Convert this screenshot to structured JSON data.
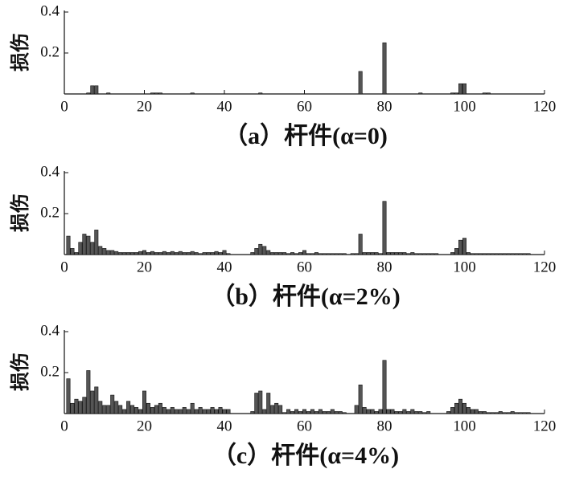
{
  "chart_data": [
    {
      "type": "bar",
      "xlabel": "（a）杆件(α=0)",
      "ylabel": "损伤",
      "color": "#555555",
      "x": [
        6,
        7,
        8,
        11,
        22,
        23,
        24,
        32,
        49,
        74,
        80,
        89,
        97,
        98,
        99,
        100,
        105,
        106
      ],
      "values": [
        0.005,
        0.04,
        0.04,
        0.005,
        0.005,
        0.005,
        0.005,
        0.005,
        0.005,
        0.11,
        0.25,
        0.005,
        0.005,
        0.005,
        0.05,
        0.05,
        0.005,
        0.005
      ],
      "xlim": [
        0,
        120
      ],
      "xticks": [
        0,
        20,
        40,
        60,
        80,
        100,
        120
      ],
      "ylim": [
        0,
        0.4
      ],
      "yticks": [
        0.2,
        0.4
      ]
    },
    {
      "type": "bar",
      "xlabel": "（b）杆件(α=2%)",
      "ylabel": "损伤",
      "color": "#555555",
      "x": [
        1,
        2,
        3,
        4,
        5,
        6,
        7,
        8,
        9,
        10,
        11,
        12,
        13,
        14,
        15,
        16,
        17,
        18,
        19,
        20,
        21,
        22,
        23,
        24,
        25,
        26,
        27,
        28,
        29,
        30,
        31,
        32,
        33,
        34,
        35,
        36,
        37,
        38,
        39,
        40,
        41,
        42,
        43,
        44,
        45,
        46,
        47,
        48,
        49,
        50,
        51,
        52,
        53,
        54,
        55,
        56,
        57,
        58,
        59,
        60,
        61,
        62,
        63,
        64,
        65,
        66,
        67,
        68,
        69,
        70,
        71,
        72,
        73,
        74,
        75,
        76,
        77,
        78,
        79,
        80,
        81,
        82,
        83,
        84,
        85,
        86,
        87,
        88,
        89,
        90,
        91,
        92,
        93,
        94,
        95,
        96,
        97,
        98,
        99,
        100,
        101,
        102,
        103,
        104,
        105,
        106,
        107,
        108,
        109,
        110,
        111,
        112,
        113,
        114,
        115,
        116
      ],
      "values": [
        0.09,
        0.03,
        0.01,
        0.06,
        0.1,
        0.09,
        0.06,
        0.12,
        0.04,
        0.03,
        0.02,
        0.02,
        0.015,
        0.01,
        0.01,
        0.01,
        0.01,
        0.01,
        0.015,
        0.02,
        0.01,
        0.015,
        0.01,
        0.01,
        0.015,
        0.01,
        0.015,
        0.01,
        0.015,
        0.01,
        0.01,
        0.015,
        0.01,
        0.005,
        0.01,
        0.01,
        0.01,
        0.015,
        0.01,
        0.02,
        0.005,
        0,
        0,
        0,
        0,
        0,
        0.01,
        0.03,
        0.05,
        0.04,
        0.02,
        0.01,
        0.01,
        0.01,
        0.01,
        0.005,
        0.01,
        0.005,
        0.01,
        0.02,
        0.005,
        0.005,
        0.01,
        0.005,
        0.005,
        0.005,
        0.005,
        0.005,
        0.005,
        0.005,
        0,
        0.005,
        0.005,
        0.1,
        0.01,
        0.01,
        0.01,
        0.01,
        0.005,
        0.26,
        0.01,
        0.01,
        0.01,
        0.01,
        0.01,
        0.005,
        0.01,
        0.005,
        0.005,
        0.005,
        0.005,
        0.005,
        0.005,
        0,
        0,
        0,
        0.01,
        0.03,
        0.07,
        0.08,
        0.01,
        0.005,
        0.005,
        0.005,
        0.005,
        0.005,
        0.005,
        0.005,
        0.005,
        0.005,
        0.005,
        0.005,
        0.005,
        0.005,
        0.005,
        0.005
      ],
      "xlim": [
        0,
        120
      ],
      "xticks": [
        0,
        20,
        40,
        60,
        80,
        100,
        120
      ],
      "ylim": [
        0,
        0.4
      ],
      "yticks": [
        0.2,
        0.4
      ]
    },
    {
      "type": "bar",
      "xlabel": "（c）杆件(α=4%)",
      "ylabel": "损伤",
      "color": "#555555",
      "x": [
        1,
        2,
        3,
        4,
        5,
        6,
        7,
        8,
        9,
        10,
        11,
        12,
        13,
        14,
        15,
        16,
        17,
        18,
        19,
        20,
        21,
        22,
        23,
        24,
        25,
        26,
        27,
        28,
        29,
        30,
        31,
        32,
        33,
        34,
        35,
        36,
        37,
        38,
        39,
        40,
        41,
        42,
        43,
        44,
        45,
        46,
        47,
        48,
        49,
        50,
        51,
        52,
        53,
        54,
        55,
        56,
        57,
        58,
        59,
        60,
        61,
        62,
        63,
        64,
        65,
        66,
        67,
        68,
        69,
        70,
        71,
        72,
        73,
        74,
        75,
        76,
        77,
        78,
        79,
        80,
        81,
        82,
        83,
        84,
        85,
        86,
        87,
        88,
        89,
        90,
        91,
        92,
        93,
        94,
        95,
        96,
        97,
        98,
        99,
        100,
        101,
        102,
        103,
        104,
        105,
        106,
        107,
        108,
        109,
        110,
        111,
        112,
        113,
        114,
        115,
        116
      ],
      "values": [
        0.17,
        0.05,
        0.07,
        0.06,
        0.08,
        0.21,
        0.11,
        0.13,
        0.06,
        0.04,
        0.04,
        0.09,
        0.06,
        0.04,
        0.02,
        0.06,
        0.04,
        0.03,
        0.02,
        0.11,
        0.05,
        0.03,
        0.04,
        0.05,
        0.03,
        0.02,
        0.03,
        0.02,
        0.02,
        0.03,
        0.02,
        0.05,
        0.02,
        0.03,
        0.02,
        0.02,
        0.03,
        0.02,
        0.03,
        0.02,
        0.02,
        0,
        0,
        0,
        0,
        0,
        0.01,
        0.1,
        0.11,
        0.02,
        0.1,
        0.04,
        0.05,
        0.04,
        0.005,
        0.02,
        0.01,
        0.02,
        0.01,
        0.02,
        0.01,
        0.02,
        0.01,
        0.02,
        0.01,
        0.01,
        0.02,
        0.01,
        0.01,
        0.005,
        0,
        0,
        0.04,
        0.14,
        0.03,
        0.02,
        0.02,
        0.01,
        0.02,
        0.26,
        0.02,
        0.02,
        0.01,
        0.01,
        0.02,
        0.01,
        0.02,
        0.01,
        0.01,
        0.005,
        0.01,
        0,
        0,
        0,
        0,
        0.01,
        0.03,
        0.05,
        0.07,
        0.05,
        0.03,
        0.02,
        0.02,
        0.01,
        0.01,
        0.005,
        0.005,
        0.005,
        0.01,
        0.005,
        0.005,
        0.01,
        0.005,
        0.005,
        0.005,
        0.005
      ],
      "xlim": [
        0,
        120
      ],
      "xticks": [
        0,
        20,
        40,
        60,
        80,
        100,
        120
      ],
      "ylim": [
        0,
        0.4
      ],
      "yticks": [
        0.2,
        0.4
      ]
    }
  ]
}
